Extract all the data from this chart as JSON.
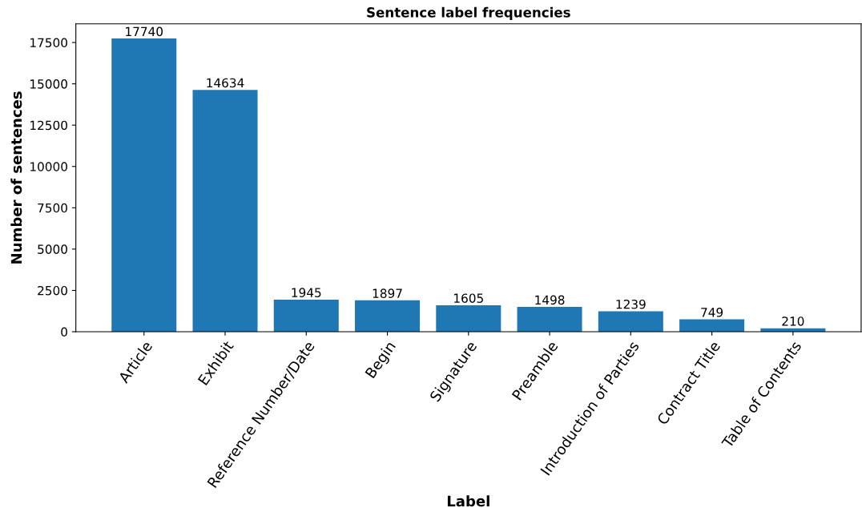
{
  "chart_data": {
    "type": "bar",
    "title": "Sentence label frequencies",
    "xlabel": "Label",
    "ylabel": "Number of sentences",
    "categories": [
      "Article",
      "Exhibit",
      "Reference Number/Date",
      "Begin",
      "Signature",
      "Preamble",
      "Introduction of Parties",
      "Contract Title",
      "Table of Contents"
    ],
    "values": [
      17740,
      14634,
      1945,
      1897,
      1605,
      1498,
      1239,
      749,
      210
    ],
    "color": "#1f77b4",
    "ylim": [
      0,
      18627
    ],
    "yticks": [
      0,
      2500,
      5000,
      7500,
      10000,
      12500,
      15000,
      17500
    ],
    "data_labels": true,
    "grid": false
  }
}
